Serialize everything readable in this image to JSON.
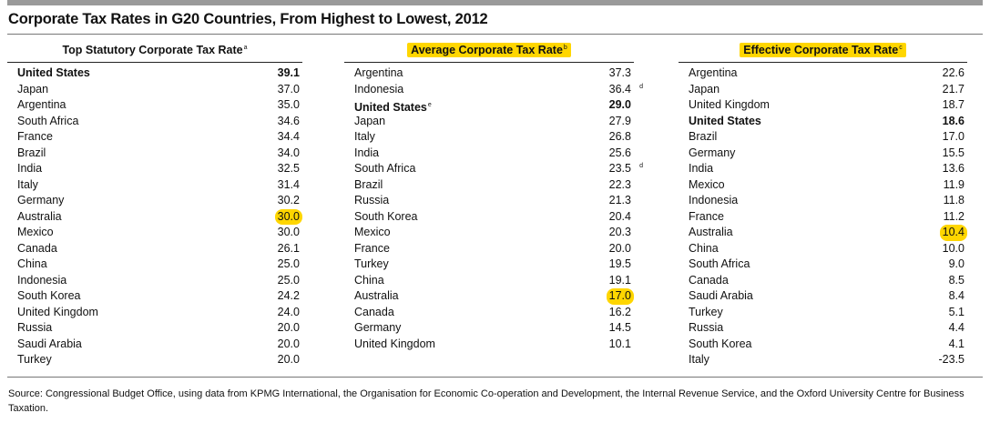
{
  "title": "Corporate Tax Rates in G20 Countries, From Highest to Lowest, 2012",
  "source": "Source: Congressional Budget Office, using data from KPMG International, the Organisation for Economic Co-operation and Development, the Internal Revenue Service, and the Oxford University Centre for Business Taxation.",
  "highlight_color": "#ffd600",
  "panels": [
    {
      "header": "Top Statutory Corporate Tax Rate",
      "header_note": "a",
      "header_highlighted": false,
      "rows": [
        {
          "country": "United States",
          "value": "39.1",
          "bold": true
        },
        {
          "country": "Japan",
          "value": "37.0"
        },
        {
          "country": "Argentina",
          "value": "35.0"
        },
        {
          "country": "South Africa",
          "value": "34.6"
        },
        {
          "country": "France",
          "value": "34.4"
        },
        {
          "country": "Brazil",
          "value": "34.0"
        },
        {
          "country": "India",
          "value": "32.5"
        },
        {
          "country": "Italy",
          "value": "31.4"
        },
        {
          "country": "Germany",
          "value": "30.2"
        },
        {
          "country": "Australia",
          "value": "30.0",
          "highlight": true
        },
        {
          "country": "Mexico",
          "value": "30.0"
        },
        {
          "country": "Canada",
          "value": "26.1"
        },
        {
          "country": "China",
          "value": "25.0"
        },
        {
          "country": "Indonesia",
          "value": "25.0"
        },
        {
          "country": "South Korea",
          "value": "24.2"
        },
        {
          "country": "United Kingdom",
          "value": "24.0"
        },
        {
          "country": "Russia",
          "value": "20.0"
        },
        {
          "country": "Saudi Arabia",
          "value": "20.0"
        },
        {
          "country": "Turkey",
          "value": "20.0"
        }
      ]
    },
    {
      "header": "Average Corporate Tax Rate",
      "header_note": "b",
      "header_highlighted": true,
      "rows": [
        {
          "country": "Argentina",
          "value": "37.3"
        },
        {
          "country": "Indonesia",
          "value": "36.4",
          "note": "d"
        },
        {
          "country": "United States",
          "value": "29.0",
          "bold": true,
          "country_note": "e"
        },
        {
          "country": "Japan",
          "value": "27.9"
        },
        {
          "country": "Italy",
          "value": "26.8"
        },
        {
          "country": "India",
          "value": "25.6"
        },
        {
          "country": "South Africa",
          "value": "23.5",
          "note": "d"
        },
        {
          "country": "Brazil",
          "value": "22.3"
        },
        {
          "country": "Russia",
          "value": "21.3"
        },
        {
          "country": "South Korea",
          "value": "20.4"
        },
        {
          "country": "Mexico",
          "value": "20.3"
        },
        {
          "country": "France",
          "value": "20.0"
        },
        {
          "country": "Turkey",
          "value": "19.5"
        },
        {
          "country": "China",
          "value": "19.1"
        },
        {
          "country": "Australia",
          "value": "17.0",
          "highlight": true
        },
        {
          "country": "Canada",
          "value": "16.2"
        },
        {
          "country": "Germany",
          "value": "14.5"
        },
        {
          "country": "United Kingdom",
          "value": "10.1"
        }
      ]
    },
    {
      "header": "Effective Corporate Tax Rate",
      "header_note": "c",
      "header_highlighted": true,
      "rows": [
        {
          "country": "Argentina",
          "value": "22.6"
        },
        {
          "country": "Japan",
          "value": "21.7"
        },
        {
          "country": "United Kingdom",
          "value": "18.7"
        },
        {
          "country": "United States",
          "value": "18.6",
          "bold": true
        },
        {
          "country": "Brazil",
          "value": "17.0"
        },
        {
          "country": "Germany",
          "value": "15.5"
        },
        {
          "country": "India",
          "value": "13.6"
        },
        {
          "country": "Mexico",
          "value": "11.9"
        },
        {
          "country": "Indonesia",
          "value": "11.8"
        },
        {
          "country": "France",
          "value": "11.2"
        },
        {
          "country": "Australia",
          "value": "10.4",
          "highlight": true
        },
        {
          "country": "China",
          "value": "10.0"
        },
        {
          "country": "South Africa",
          "value": "9.0"
        },
        {
          "country": "Canada",
          "value": "8.5"
        },
        {
          "country": "Saudi Arabia",
          "value": "8.4"
        },
        {
          "country": "Turkey",
          "value": "5.1"
        },
        {
          "country": "Russia",
          "value": "4.4"
        },
        {
          "country": "South Korea",
          "value": "4.1"
        },
        {
          "country": "Italy",
          "value": "-23.5"
        }
      ]
    }
  ]
}
